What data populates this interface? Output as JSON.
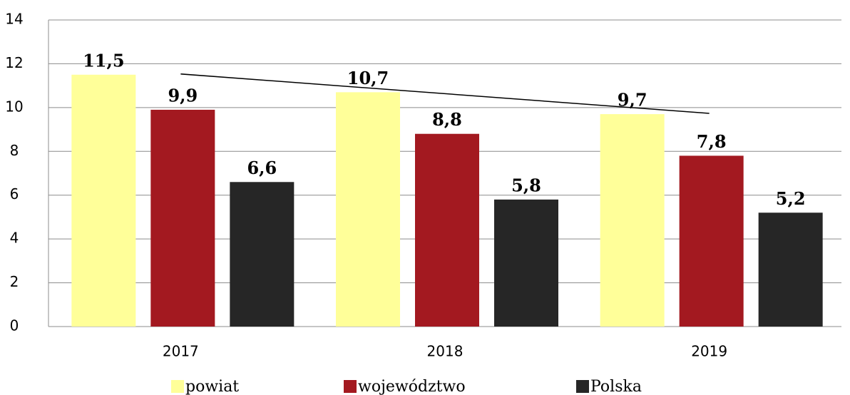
{
  "chart_data": {
    "type": "bar",
    "categories": [
      "2017",
      "2018",
      "2019"
    ],
    "series": [
      {
        "name": "powiat",
        "color": "#ffff99",
        "values": [
          11.5,
          10.7,
          9.7
        ],
        "value_labels": [
          "11,5",
          "10,7",
          "9,7"
        ]
      },
      {
        "name": "województwo",
        "color": "#a31920",
        "values": [
          9.9,
          8.8,
          7.8
        ],
        "value_labels": [
          "9,9",
          "8,8",
          "7,8"
        ]
      },
      {
        "name": "Polska",
        "color": "#262626",
        "values": [
          6.6,
          5.8,
          5.2
        ],
        "value_labels": [
          "6,6",
          "5,8",
          "5,2"
        ]
      }
    ],
    "ylim": [
      0,
      14
    ],
    "yticks": [
      0,
      2,
      4,
      6,
      8,
      10,
      12,
      14
    ],
    "grid": true,
    "trendline": {
      "series": 0,
      "color": "#000000"
    },
    "legend": "bottom"
  }
}
